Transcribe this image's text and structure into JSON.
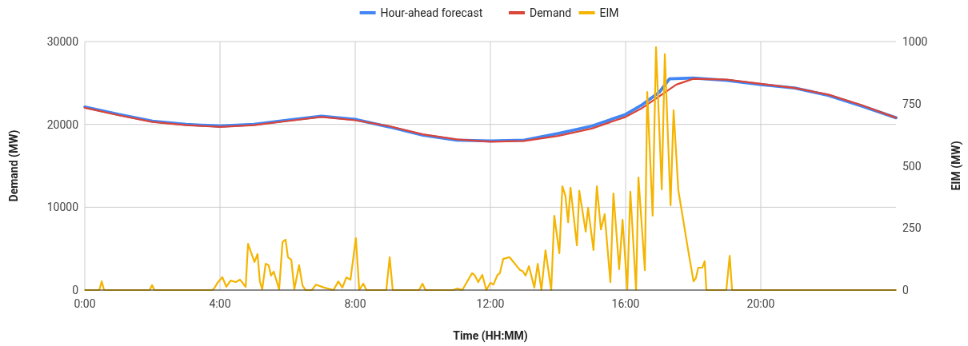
{
  "chart_data": {
    "type": "line",
    "xlabel": "Time (HH:MM)",
    "ylabel": "Demand (MW)",
    "y2label": "EIM (MW)",
    "xlim": [
      0,
      24
    ],
    "xticks": [
      {
        "value": 0,
        "label": "0:00"
      },
      {
        "value": 4,
        "label": "4:00"
      },
      {
        "value": 8,
        "label": "8:00"
      },
      {
        "value": 12,
        "label": "12:00"
      },
      {
        "value": 16,
        "label": "16:00"
      },
      {
        "value": 20,
        "label": "20:00"
      }
    ],
    "ylim": [
      0,
      30000
    ],
    "yticks": [
      0,
      10000,
      20000,
      30000
    ],
    "y2lim": [
      0,
      1000
    ],
    "y2ticks": [
      0,
      250,
      500,
      750,
      1000
    ],
    "grid": true,
    "legend": "top",
    "series": [
      {
        "name": "Hour-ahead forecast",
        "color": "#4285f4",
        "x": [
          0,
          1,
          2,
          3,
          4,
          5,
          6,
          7,
          8,
          9,
          10,
          11,
          12,
          13,
          14,
          15,
          16,
          16.5,
          17,
          17.3,
          18,
          19,
          20,
          21,
          22,
          23,
          24
        ],
        "values": [
          22100,
          21200,
          20400,
          20000,
          19800,
          20000,
          20500,
          21000,
          20600,
          19700,
          18700,
          18100,
          18000,
          18100,
          18900,
          19800,
          21200,
          22400,
          23900,
          25500,
          25600,
          25300,
          24800,
          24400,
          23500,
          22200,
          20800
        ]
      },
      {
        "name": "Demand",
        "color": "#db4437",
        "x": [
          0,
          1,
          2,
          3,
          4,
          5,
          6,
          7,
          8,
          9,
          10,
          11,
          12,
          13,
          14,
          15,
          16,
          16.5,
          17,
          17.5,
          18,
          19,
          20,
          21,
          22,
          23,
          24
        ],
        "values": [
          22000,
          21100,
          20300,
          19900,
          19700,
          19900,
          20400,
          20900,
          20500,
          19800,
          18800,
          18200,
          17900,
          18000,
          18600,
          19500,
          20900,
          22000,
          23400,
          24800,
          25500,
          25400,
          24900,
          24400,
          23600,
          22300,
          20800
        ]
      },
      {
        "name": "EIM",
        "color": "#f4b400",
        "axis": "y2",
        "x": [
          0,
          0.43,
          0.5,
          0.57,
          1.92,
          1.99,
          2.06,
          3.76,
          3.81,
          3.93,
          4.07,
          4.19,
          4.31,
          4.47,
          4.59,
          4.76,
          4.83,
          5.02,
          5.11,
          5.18,
          5.25,
          5.35,
          5.44,
          5.51,
          5.59,
          5.75,
          5.85,
          5.94,
          6.01,
          6.11,
          6.2,
          6.34,
          6.44,
          6.53,
          6.72,
          6.84,
          7.08,
          7.36,
          7.5,
          7.62,
          7.74,
          7.86,
          8.02,
          8.12,
          8.24,
          8.33,
          8.92,
          9.02,
          9.11,
          9.89,
          9.99,
          10.08,
          10.89,
          11.03,
          11.17,
          11.29,
          11.46,
          11.53,
          11.64,
          11.76,
          11.88,
          12.0,
          12.09,
          12.21,
          12.28,
          12.38,
          12.47,
          12.57,
          12.88,
          12.95,
          13.04,
          13.14,
          13.3,
          13.4,
          13.51,
          13.63,
          13.8,
          13.89,
          14.04,
          14.13,
          14.22,
          14.3,
          14.37,
          14.56,
          14.63,
          14.82,
          14.89,
          15.05,
          15.15,
          15.27,
          15.38,
          15.55,
          15.64,
          15.81,
          15.91,
          16.05,
          16.14,
          16.31,
          16.38,
          16.57,
          16.64,
          16.8,
          16.9,
          17.07,
          17.16,
          17.33,
          17.42,
          17.56,
          17.85,
          18.01,
          18.08,
          18.15,
          18.27,
          18.34,
          18.39,
          18.98,
          19.08,
          19.15,
          24
        ],
        "values": [
          0,
          0,
          35,
          0,
          0,
          20,
          0,
          0,
          3,
          30,
          52,
          13,
          38,
          32,
          42,
          13,
          186,
          113,
          145,
          35,
          3,
          106,
          100,
          58,
          74,
          3,
          193,
          203,
          132,
          122,
          3,
          100,
          19,
          0,
          0,
          22,
          10,
          0,
          35,
          10,
          51,
          42,
          209,
          0,
          26,
          0,
          0,
          132,
          0,
          0,
          26,
          0,
          0,
          6,
          0,
          29,
          68,
          61,
          32,
          61,
          0,
          29,
          22,
          61,
          68,
          125,
          129,
          132,
          80,
          77,
          58,
          96,
          10,
          106,
          0,
          160,
          0,
          299,
          148,
          418,
          379,
          273,
          412,
          180,
          399,
          235,
          331,
          161,
          418,
          244,
          305,
          32,
          389,
          84,
          283,
          3,
          396,
          0,
          453,
          80,
          797,
          299,
          977,
          405,
          949,
          341,
          723,
          402,
          161,
          35,
          48,
          90,
          90,
          116,
          0,
          0,
          138,
          0,
          0
        ]
      }
    ]
  }
}
